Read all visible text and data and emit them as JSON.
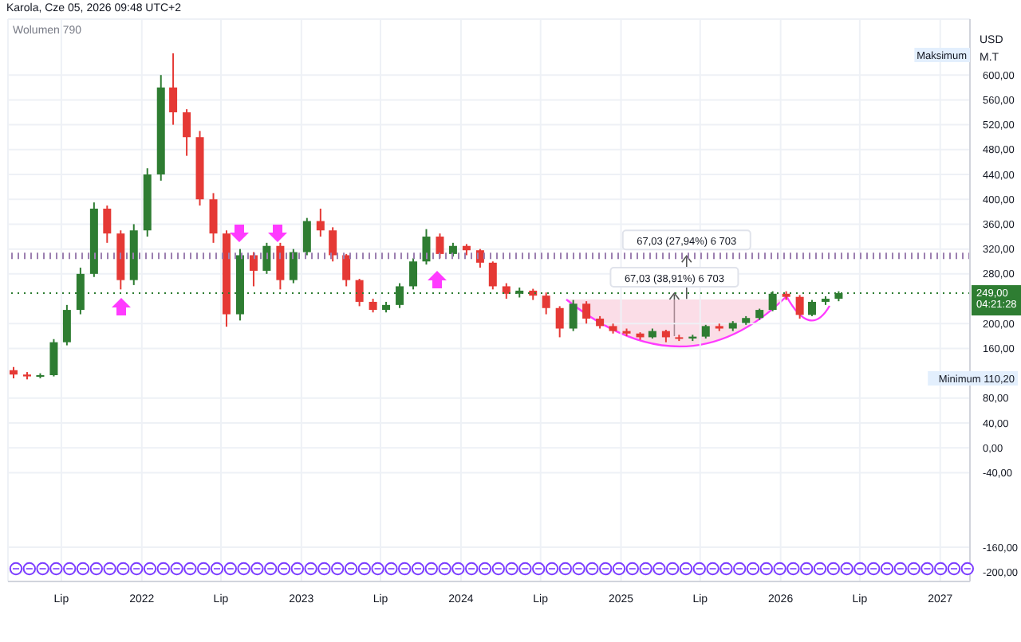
{
  "chart_data": {
    "type": "candlestick",
    "title": "Karola, Cze 05, 2026 09:48 UTC+2",
    "x": [
      "2021-03-15",
      "2021-04-15",
      "2021-05-15",
      "2021-06-15",
      "2021-07-15",
      "2021-08-15",
      "2021-09-15",
      "2021-10-15",
      "2021-11-15",
      "2021-12-15",
      "2022-01-15",
      "2022-02-15",
      "2022-03-15",
      "2022-04-15",
      "2022-05-15",
      "2022-06-15",
      "2022-07-15",
      "2022-08-15",
      "2022-09-15",
      "2022-10-15",
      "2022-11-15",
      "2022-12-15",
      "2023-01-15",
      "2023-02-15",
      "2023-03-15",
      "2023-04-15",
      "2023-05-15",
      "2023-06-15",
      "2023-07-15",
      "2023-08-15",
      "2023-09-15",
      "2023-10-15",
      "2023-11-15",
      "2023-12-15",
      "2024-01-15",
      "2024-02-15",
      "2024-03-15",
      "2024-04-15",
      "2024-05-15",
      "2024-06-15",
      "2024-07-15",
      "2024-08-15",
      "2024-09-15",
      "2024-10-15",
      "2024-11-15",
      "2024-12-15",
      "2025-01-15",
      "2025-02-15",
      "2025-03-15",
      "2025-04-15",
      "2025-05-15",
      "2025-06-15",
      "2025-07-15",
      "2025-08-15",
      "2025-09-15",
      "2025-10-15",
      "2025-11-15",
      "2025-12-15",
      "2026-01-15",
      "2026-02-15",
      "2026-03-15",
      "2026-04-15",
      "2026-05-15"
    ],
    "ohlc": [
      [
        125,
        130,
        112,
        118
      ],
      [
        118,
        122,
        110.2,
        115
      ],
      [
        115,
        120,
        112,
        117
      ],
      [
        117,
        175,
        115,
        170
      ],
      [
        170,
        230,
        165,
        222
      ],
      [
        222,
        290,
        215,
        280
      ],
      [
        280,
        395,
        275,
        385
      ],
      [
        385,
        390,
        330,
        345
      ],
      [
        345,
        350,
        255,
        270
      ],
      [
        270,
        360,
        262,
        350
      ],
      [
        350,
        450,
        340,
        440
      ],
      [
        440,
        600,
        430,
        580
      ],
      [
        580,
        635,
        520,
        540
      ],
      [
        540,
        545,
        470,
        500
      ],
      [
        500,
        510,
        390,
        400
      ],
      [
        400,
        410,
        330,
        345
      ],
      [
        345,
        350,
        195,
        215
      ],
      [
        215,
        320,
        205,
        310
      ],
      [
        310,
        315,
        260,
        285
      ],
      [
        285,
        330,
        280,
        325
      ],
      [
        325,
        330,
        255,
        270
      ],
      [
        270,
        320,
        265,
        315
      ],
      [
        315,
        370,
        310,
        365
      ],
      [
        365,
        385,
        340,
        350
      ],
      [
        350,
        355,
        300,
        310
      ],
      [
        310,
        312,
        260,
        270
      ],
      [
        270,
        272,
        228,
        235
      ],
      [
        235,
        240,
        218,
        222
      ],
      [
        222,
        235,
        218,
        230
      ],
      [
        230,
        265,
        225,
        260
      ],
      [
        260,
        305,
        255,
        300
      ],
      [
        300,
        352,
        295,
        340
      ],
      [
        340,
        345,
        305,
        312
      ],
      [
        312,
        330,
        308,
        325
      ],
      [
        325,
        328,
        310,
        318
      ],
      [
        318,
        320,
        290,
        298
      ],
      [
        298,
        300,
        255,
        260
      ],
      [
        260,
        265,
        240,
        248
      ],
      [
        248,
        258,
        242,
        253
      ],
      [
        253,
        256,
        238,
        245
      ],
      [
        245,
        250,
        215,
        225
      ],
      [
        225,
        228,
        178,
        192
      ],
      [
        192,
        238,
        188,
        232
      ],
      [
        232,
        236,
        200,
        208
      ],
      [
        208,
        212,
        192,
        196
      ],
      [
        196,
        200,
        184,
        188
      ],
      [
        188,
        192,
        180,
        184
      ],
      [
        184,
        186,
        174,
        178
      ],
      [
        178,
        192,
        176,
        188
      ],
      [
        188,
        190,
        170,
        178
      ],
      [
        178,
        182,
        172,
        176
      ],
      [
        176,
        182,
        172,
        179
      ],
      [
        179,
        198,
        176,
        196
      ],
      [
        196,
        200,
        188,
        192
      ],
      [
        192,
        204,
        188,
        201
      ],
      [
        201,
        212,
        198,
        209
      ],
      [
        209,
        224,
        206,
        222
      ],
      [
        222,
        252,
        220,
        248
      ],
      [
        248,
        252,
        238,
        243
      ],
      [
        243,
        246,
        208,
        214
      ],
      [
        214,
        238,
        212,
        235
      ],
      [
        235,
        244,
        230,
        240
      ],
      [
        240,
        252,
        236,
        249
      ]
    ],
    "colors": [
      "#e53935",
      "#e53935",
      "#2e7d32",
      "#2e7d32",
      "#2e7d32",
      "#2e7d32",
      "#2e7d32",
      "#e53935",
      "#e53935",
      "#2e7d32",
      "#2e7d32",
      "#2e7d32",
      "#e53935",
      "#e53935",
      "#e53935",
      "#e53935",
      "#e53935",
      "#2e7d32",
      "#e53935",
      "#2e7d32",
      "#e53935",
      "#2e7d32",
      "#2e7d32",
      "#e53935",
      "#e53935",
      "#e53935",
      "#e53935",
      "#e53935",
      "#2e7d32",
      "#2e7d32",
      "#2e7d32",
      "#2e7d32",
      "#e53935",
      "#2e7d32",
      "#e53935",
      "#e53935",
      "#e53935",
      "#e53935",
      "#2e7d32",
      "#e53935",
      "#e53935",
      "#e53935",
      "#2e7d32",
      "#e53935",
      "#e53935",
      "#e53935",
      "#e53935",
      "#e53935",
      "#2e7d32",
      "#e53935",
      "#e53935",
      "#2e7d32",
      "#2e7d32",
      "#e53935",
      "#2e7d32",
      "#2e7d32",
      "#2e7d32",
      "#2e7d32",
      "#e53935",
      "#e53935",
      "#2e7d32",
      "#2e7d32",
      "#2e7d32"
    ],
    "xlim": [
      "2021-03-01",
      "2027-03-10"
    ],
    "xticks": [
      {
        "value": "2021-07-01",
        "label": "Lip"
      },
      {
        "value": "2022-01-01",
        "label": "2022"
      },
      {
        "value": "2022-07-01",
        "label": "Lip"
      },
      {
        "value": "2023-01-01",
        "label": "2023"
      },
      {
        "value": "2023-07-01",
        "label": "Lip"
      },
      {
        "value": "2024-01-01",
        "label": "2024"
      },
      {
        "value": "2024-07-01",
        "label": "Lip"
      },
      {
        "value": "2025-01-01",
        "label": "2025"
      },
      {
        "value": "2025-07-01",
        "label": "Lip"
      },
      {
        "value": "2026-01-01",
        "label": "2026"
      },
      {
        "value": "2026-07-01",
        "label": "Lip"
      },
      {
        "value": "2027-01-01",
        "label": "2027"
      }
    ],
    "ylim": [
      -215,
      690
    ],
    "yticks": [
      {
        "value": 600,
        "label": "600,00"
      },
      {
        "value": 560,
        "label": "560,00"
      },
      {
        "value": 520,
        "label": "520,00"
      },
      {
        "value": 480,
        "label": "480,00"
      },
      {
        "value": 440,
        "label": "440,00"
      },
      {
        "value": 400,
        "label": "400,00"
      },
      {
        "value": 360,
        "label": "360,00"
      },
      {
        "value": 320,
        "label": "320,00"
      },
      {
        "value": 280,
        "label": "280,00"
      },
      {
        "value": 200,
        "label": "200,00"
      },
      {
        "value": 160,
        "label": "160,00"
      },
      {
        "value": 80,
        "label": "80,00"
      },
      {
        "value": 40,
        "label": "40,00"
      },
      {
        "value": 0,
        "label": "0,00"
      },
      {
        "value": -40,
        "label": "-40,00"
      },
      {
        "value": -160,
        "label": "-160,00"
      },
      {
        "value": -200,
        "label": "-200,00"
      }
    ],
    "grid": true,
    "ref_lines": [
      {
        "axis": "y",
        "value": 309,
        "color": "#9c7fb0",
        "line_style": "dotted"
      },
      {
        "axis": "y",
        "value": 249,
        "label": "249,00 04:21:28",
        "color": "#2e7d32",
        "line_style": "dotted"
      }
    ],
    "annotations": [
      "Wolumen 790",
      "USD",
      "M.T",
      "Maksimum",
      "Minimum 110,20",
      {
        "text": "67,03 (27,94%) 6 703",
        "x": "2025-05-31",
        "y": 309
      },
      {
        "text": "67,03 (38,91%) 6 703",
        "x": "2025-05-03",
        "y": 249
      }
    ]
  }
}
